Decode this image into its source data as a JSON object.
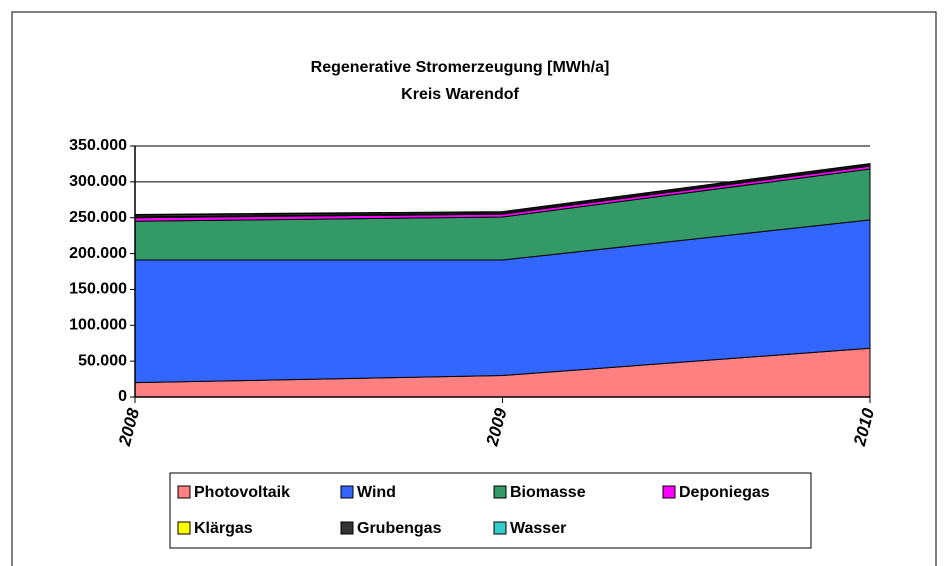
{
  "chart_data": {
    "type": "stacked_area",
    "title": "Regenerative Stromerzeugung [MWh/a]",
    "subtitle": "Kreis Warendof",
    "categories": [
      "2008",
      "2009",
      "2010"
    ],
    "series": [
      {
        "name": "Photovoltaik",
        "color": "#ff8080",
        "values": [
          20000,
          30000,
          68000
        ]
      },
      {
        "name": "Wind",
        "color": "#3366ff",
        "values": [
          171000,
          161000,
          179000
        ]
      },
      {
        "name": "Biomasse",
        "color": "#339966",
        "values": [
          54000,
          60000,
          71000
        ]
      },
      {
        "name": "Deponiegas",
        "color": "#ff00ff",
        "values": [
          5000,
          4000,
          4000
        ]
      },
      {
        "name": "Klärgas",
        "color": "#ffff00",
        "values": [
          1000,
          1000,
          1000
        ]
      },
      {
        "name": "Grubengas",
        "color": "#333333",
        "values": [
          3000,
          2000,
          2000
        ]
      },
      {
        "name": "Wasser",
        "color": "#33cccc",
        "values": [
          500,
          500,
          500
        ]
      }
    ],
    "ylim": [
      0,
      350000
    ],
    "yticks": [
      0,
      {
        "value": 50000,
        "label": "50.000"
      },
      {
        "value": 100000,
        "label": "100.000"
      },
      {
        "value": 150000,
        "label": "150.000"
      },
      {
        "value": 200000,
        "label": "200.000"
      },
      {
        "value": 250000,
        "label": "250.000"
      },
      {
        "value": 300000,
        "label": "300.000"
      },
      {
        "value": 350000,
        "label": "350.000"
      }
    ],
    "grid": true
  }
}
